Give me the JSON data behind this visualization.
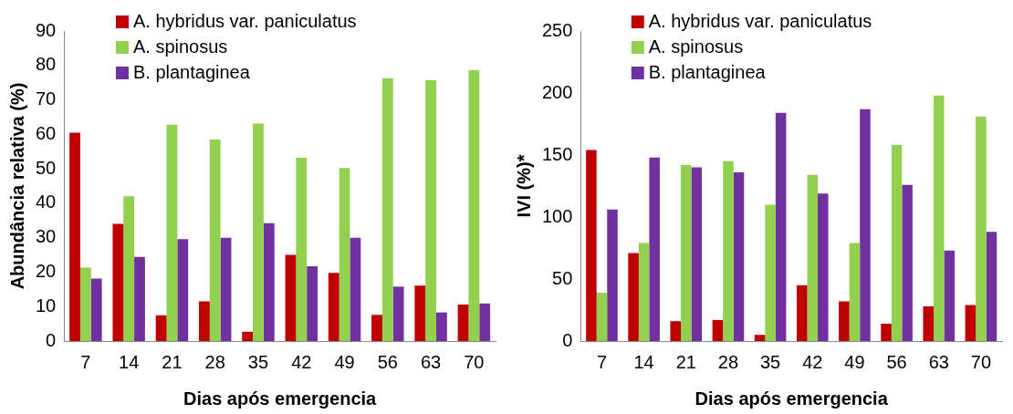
{
  "chart_data": [
    {
      "type": "bar",
      "xlabel": "Dias após emergencia",
      "ylabel": "Abundância relativa (%)",
      "categories": [
        "7",
        "14",
        "21",
        "28",
        "35",
        "42",
        "49",
        "56",
        "63",
        "70"
      ],
      "series": [
        {
          "name": "A. hybridus var. paniculatus",
          "color": "#c00000",
          "values": [
            60.5,
            34,
            7.5,
            11.5,
            2.7,
            25,
            19.8,
            7.6,
            16.1,
            10.6
          ]
        },
        {
          "name": "A. spinosus",
          "color": "#92d050",
          "values": [
            21.3,
            42,
            62.8,
            58.5,
            63.1,
            53.2,
            50.2,
            76.3,
            75.7,
            78.6
          ]
        },
        {
          "name": "B. plantaginea",
          "color": "#7030a0",
          "values": [
            18.1,
            24.4,
            29.6,
            30,
            34.2,
            21.7,
            30,
            15.8,
            8.3,
            10.9
          ]
        }
      ],
      "ylim": [
        0,
        90
      ],
      "yticks": [
        0,
        10,
        20,
        30,
        40,
        50,
        60,
        70,
        80,
        90
      ],
      "grid": false,
      "legend": "top"
    },
    {
      "type": "bar",
      "xlabel": "Dias após emergencia",
      "ylabel": "IVI (%)*",
      "categories": [
        "7",
        "14",
        "21",
        "28",
        "35",
        "42",
        "49",
        "56",
        "63",
        "70"
      ],
      "series": [
        {
          "name": "A. hybridus var. paniculatus",
          "color": "#c00000",
          "values": [
            154,
            71,
            16,
            17,
            5,
            45,
            32,
            14,
            28,
            29
          ]
        },
        {
          "name": "A. spinosus",
          "color": "#92d050",
          "values": [
            39,
            79,
            142,
            145,
            110,
            134,
            79,
            158,
            198,
            181
          ]
        },
        {
          "name": "B. plantaginea",
          "color": "#7030a0",
          "values": [
            106,
            148,
            140,
            136,
            184,
            119,
            187,
            126,
            73,
            88
          ]
        }
      ],
      "ylim": [
        0,
        250
      ],
      "yticks": [
        0,
        50,
        100,
        150,
        200,
        250
      ],
      "grid": false,
      "legend": "top"
    }
  ]
}
